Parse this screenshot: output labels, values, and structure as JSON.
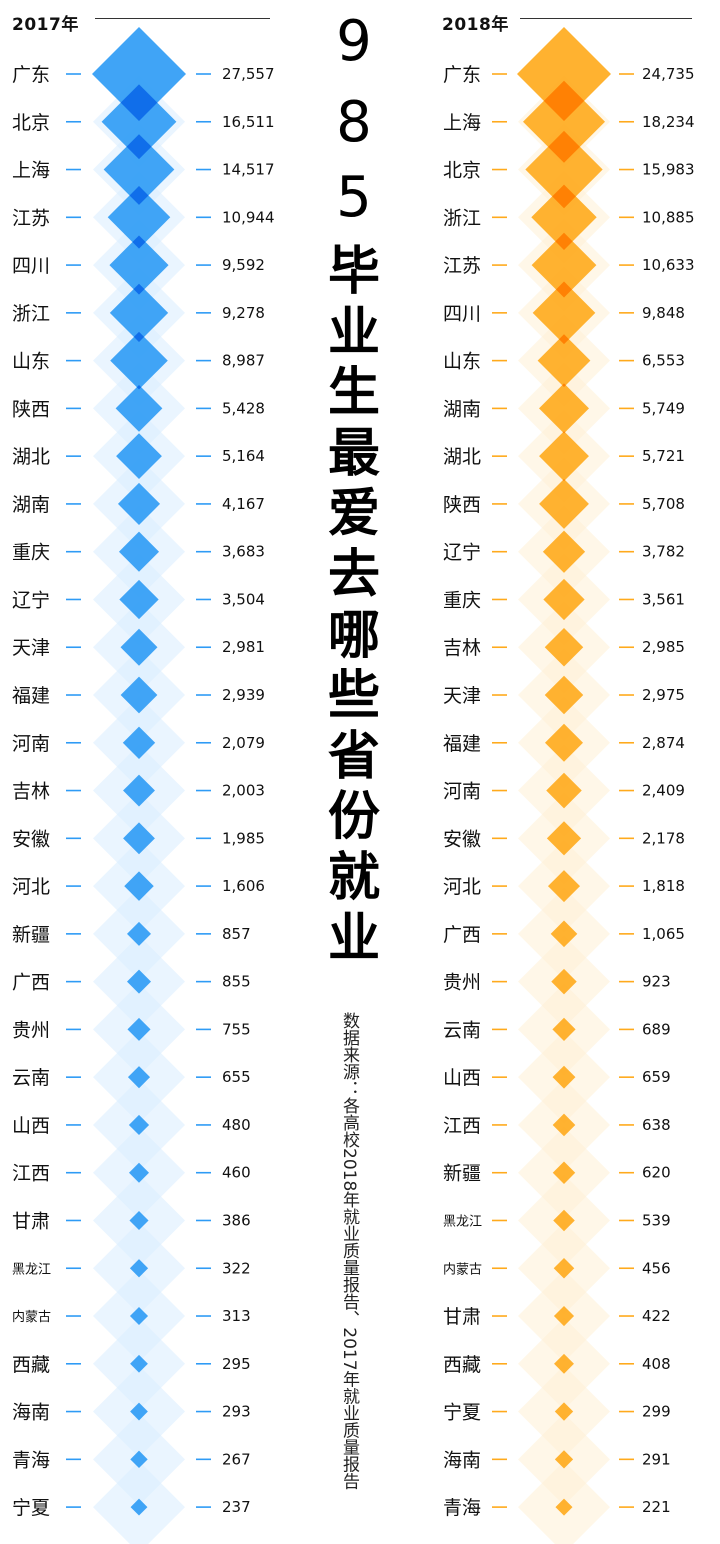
{
  "title": {
    "number": [
      "9",
      "8",
      "5"
    ],
    "chars": [
      "毕",
      "业",
      "生",
      "最",
      "爱",
      "去",
      "哪",
      "些",
      "省",
      "份",
      "就",
      "业"
    ]
  },
  "source": "数据来源：各高校2018年就业质量报告、2017年就业质量报告",
  "colors": {
    "blue": "#2E9BF5",
    "blue_dark": "#0A66E8",
    "blue_light": "#D9EDFF",
    "orange": "#FFAA1C",
    "orange_dark": "#FF7A00",
    "orange_light": "#FFF0D6"
  },
  "chart_data": [
    {
      "type": "bar",
      "title": "2017年",
      "categories": [
        "广东",
        "北京",
        "上海",
        "江苏",
        "四川",
        "浙江",
        "山东",
        "陕西",
        "湖北",
        "湖南",
        "重庆",
        "辽宁",
        "天津",
        "福建",
        "河南",
        "吉林",
        "安徽",
        "河北",
        "新疆",
        "广西",
        "贵州",
        "云南",
        "山西",
        "江西",
        "甘肃",
        "黑龙江",
        "内蒙古",
        "西藏",
        "海南",
        "青海",
        "宁夏"
      ],
      "values": [
        27557,
        16511,
        14517,
        10944,
        9592,
        9278,
        8987,
        5428,
        5164,
        4167,
        3683,
        3504,
        2981,
        2939,
        2079,
        2003,
        1985,
        1606,
        857,
        855,
        755,
        655,
        480,
        460,
        386,
        322,
        313,
        295,
        293,
        267,
        237
      ],
      "labels": [
        "27,557",
        "16,511",
        "14,517",
        "10,944",
        "9,592",
        "9,278",
        "8,987",
        "5,428",
        "5,164",
        "4,167",
        "3,683",
        "3,504",
        "2,981",
        "2,939",
        "2,079",
        "2,003",
        "1,985",
        "1,606",
        "857",
        "855",
        "755",
        "655",
        "480",
        "460",
        "386",
        "322",
        "313",
        "295",
        "293",
        "267",
        "237"
      ]
    },
    {
      "type": "bar",
      "title": "2018年",
      "categories": [
        "广东",
        "上海",
        "北京",
        "浙江",
        "江苏",
        "四川",
        "山东",
        "湖南",
        "湖北",
        "陕西",
        "辽宁",
        "重庆",
        "吉林",
        "天津",
        "福建",
        "河南",
        "安徽",
        "河北",
        "广西",
        "贵州",
        "云南",
        "山西",
        "江西",
        "新疆",
        "黑龙江",
        "内蒙古",
        "甘肃",
        "西藏",
        "宁夏",
        "海南",
        "青海"
      ],
      "values": [
        24735,
        18234,
        15983,
        10885,
        10633,
        9848,
        6553,
        5749,
        5721,
        5708,
        3782,
        3561,
        2985,
        2975,
        2874,
        2409,
        2178,
        1818,
        1065,
        923,
        689,
        659,
        638,
        620,
        539,
        456,
        422,
        408,
        299,
        291,
        221
      ],
      "labels": [
        "24,735",
        "18,234",
        "15,983",
        "10,885",
        "10,633",
        "9,848",
        "6,553",
        "5,749",
        "5,721",
        "5,708",
        "3,782",
        "3,561",
        "2,985",
        "2,975",
        "2,874",
        "2,409",
        "2,178",
        "1,818",
        "1,065",
        "923",
        "689",
        "659",
        "638",
        "620",
        "539",
        "456",
        "422",
        "408",
        "299",
        "291",
        "221"
      ]
    }
  ]
}
